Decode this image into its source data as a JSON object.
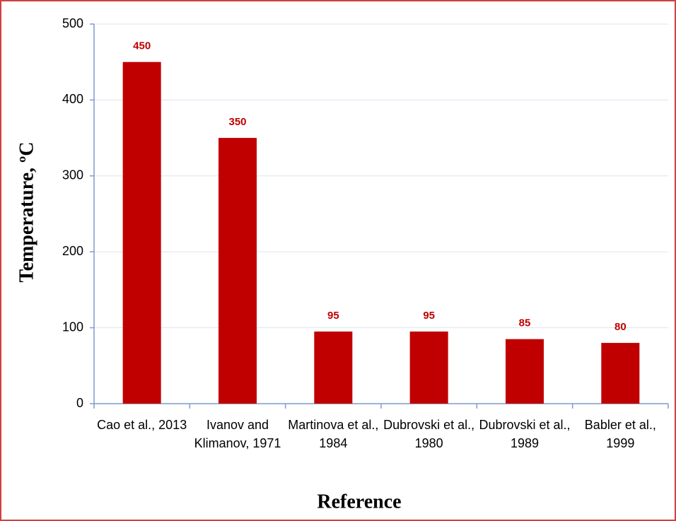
{
  "chart_data": {
    "type": "bar",
    "categories": [
      "Cao et al., 2013",
      "Ivanov and Klimanov, 1971",
      "Martinova et al., 1984",
      "Dubrovski et al., 1980",
      "Dubrovski et al., 1989",
      "Babler et al., 1999"
    ],
    "values": [
      450,
      350,
      95,
      95,
      85,
      80
    ],
    "color": "#c00000",
    "value_label_color": "#c00000",
    "ylim": [
      0,
      500
    ],
    "yticks": [
      0,
      100,
      200,
      300,
      400,
      500
    ],
    "grid": true,
    "xlabel": "Reference",
    "ylabel": "Temperature, ºC"
  }
}
